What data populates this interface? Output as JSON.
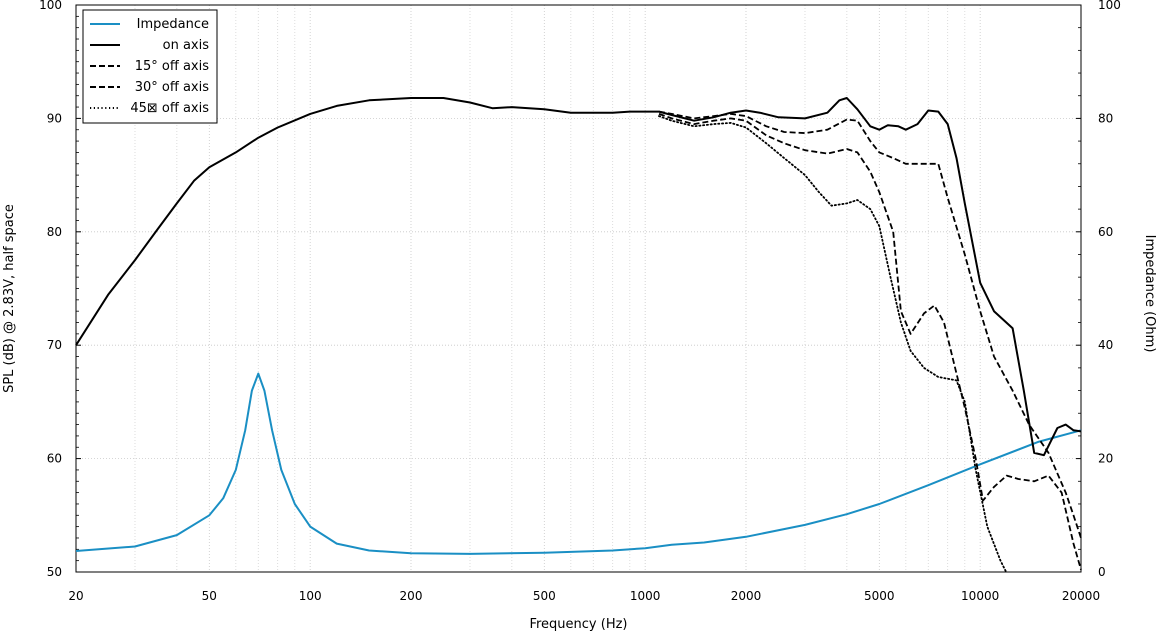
{
  "chart_data": {
    "type": "line",
    "xlabel": "Frequency (Hz)",
    "ylabel": "SPL (dB) @ 2.83V, half space",
    "y2label": "Impedance (Ohm)",
    "x_scale": "log",
    "xlim": [
      20,
      20000
    ],
    "ylim": [
      50,
      100
    ],
    "y2lim": [
      0,
      100
    ],
    "x_ticks": [
      20,
      50,
      100,
      200,
      500,
      1000,
      2000,
      5000,
      10000,
      20000
    ],
    "y_ticks": [
      50,
      60,
      70,
      80,
      90,
      100
    ],
    "y2_ticks": [
      0,
      20,
      40,
      60,
      80,
      100
    ],
    "grid": true,
    "legend_position": "top-left",
    "series": [
      {
        "name": "Impedance",
        "axis": "right",
        "color": "#1a8fc4",
        "style": "solid",
        "points": [
          [
            20,
            3.7
          ],
          [
            30,
            4.5
          ],
          [
            40,
            6.5
          ],
          [
            50,
            10
          ],
          [
            55,
            13
          ],
          [
            60,
            18
          ],
          [
            64,
            25
          ],
          [
            67,
            32
          ],
          [
            70,
            35
          ],
          [
            73,
            32
          ],
          [
            77,
            25
          ],
          [
            82,
            18
          ],
          [
            90,
            12
          ],
          [
            100,
            8
          ],
          [
            120,
            5
          ],
          [
            150,
            3.8
          ],
          [
            200,
            3.3
          ],
          [
            300,
            3.2
          ],
          [
            500,
            3.4
          ],
          [
            800,
            3.8
          ],
          [
            1000,
            4.2
          ],
          [
            1200,
            4.8
          ],
          [
            1500,
            5.2
          ],
          [
            2000,
            6.2
          ],
          [
            3000,
            8.3
          ],
          [
            4000,
            10.2
          ],
          [
            5000,
            12
          ],
          [
            7000,
            15.3
          ],
          [
            10000,
            19
          ],
          [
            15000,
            23
          ],
          [
            20000,
            25
          ]
        ]
      },
      {
        "name": "on axis",
        "axis": "left",
        "color": "#000000",
        "style": "solid",
        "points": [
          [
            20,
            70
          ],
          [
            25,
            74.5
          ],
          [
            30,
            77.5
          ],
          [
            35,
            80.2
          ],
          [
            40,
            82.5
          ],
          [
            45,
            84.5
          ],
          [
            50,
            85.7
          ],
          [
            60,
            87
          ],
          [
            70,
            88.3
          ],
          [
            80,
            89.2
          ],
          [
            100,
            90.4
          ],
          [
            120,
            91.1
          ],
          [
            150,
            91.6
          ],
          [
            200,
            91.8
          ],
          [
            250,
            91.8
          ],
          [
            300,
            91.4
          ],
          [
            350,
            90.9
          ],
          [
            400,
            91.0
          ],
          [
            500,
            90.8
          ],
          [
            600,
            90.5
          ],
          [
            700,
            90.5
          ],
          [
            800,
            90.5
          ],
          [
            900,
            90.6
          ],
          [
            1000,
            90.6
          ],
          [
            1100,
            90.6
          ],
          [
            1200,
            90.3
          ],
          [
            1400,
            89.8
          ],
          [
            1600,
            90.1
          ],
          [
            1800,
            90.5
          ],
          [
            2000,
            90.7
          ],
          [
            2200,
            90.5
          ],
          [
            2500,
            90.1
          ],
          [
            3000,
            90.0
          ],
          [
            3500,
            90.5
          ],
          [
            3800,
            91.6
          ],
          [
            4000,
            91.8
          ],
          [
            4300,
            90.8
          ],
          [
            4700,
            89.3
          ],
          [
            5000,
            89.0
          ],
          [
            5300,
            89.4
          ],
          [
            5700,
            89.3
          ],
          [
            6000,
            89.0
          ],
          [
            6500,
            89.5
          ],
          [
            7000,
            90.7
          ],
          [
            7500,
            90.6
          ],
          [
            8000,
            89.5
          ],
          [
            8500,
            86.5
          ],
          [
            9000,
            82.5
          ],
          [
            10000,
            75.5
          ],
          [
            11000,
            73.0
          ],
          [
            12500,
            71.5
          ],
          [
            13500,
            66.0
          ],
          [
            14500,
            60.5
          ],
          [
            15500,
            60.3
          ],
          [
            17000,
            62.7
          ],
          [
            18000,
            63.0
          ],
          [
            19000,
            62.5
          ],
          [
            20000,
            62.4
          ]
        ]
      },
      {
        "name": "15° off axis",
        "axis": "left",
        "color": "#000000",
        "style": "dashed",
        "points": [
          [
            1100,
            90.6
          ],
          [
            1200,
            90.4
          ],
          [
            1400,
            90.0
          ],
          [
            1600,
            90.2
          ],
          [
            1800,
            90.4
          ],
          [
            2000,
            90.2
          ],
          [
            2300,
            89.3
          ],
          [
            2600,
            88.8
          ],
          [
            3000,
            88.7
          ],
          [
            3500,
            89.0
          ],
          [
            4000,
            89.9
          ],
          [
            4300,
            89.8
          ],
          [
            4700,
            88.0
          ],
          [
            5000,
            87.0
          ],
          [
            5500,
            86.5
          ],
          [
            6000,
            86.0
          ],
          [
            7000,
            86.0
          ],
          [
            7500,
            86.0
          ],
          [
            8000,
            83.0
          ],
          [
            9000,
            78.0
          ],
          [
            10000,
            73.0
          ],
          [
            11000,
            69.0
          ],
          [
            12500,
            66.0
          ],
          [
            14000,
            63.0
          ],
          [
            16000,
            60.5
          ],
          [
            18000,
            57.0
          ],
          [
            19000,
            55.0
          ],
          [
            20000,
            53.0
          ]
        ]
      },
      {
        "name": "30° off axis",
        "axis": "left",
        "color": "#000000",
        "style": "dashed",
        "points": [
          [
            1100,
            90.4
          ],
          [
            1200,
            90.0
          ],
          [
            1400,
            89.5
          ],
          [
            1600,
            89.8
          ],
          [
            1800,
            90.0
          ],
          [
            2000,
            89.8
          ],
          [
            2300,
            88.5
          ],
          [
            2600,
            87.8
          ],
          [
            3000,
            87.2
          ],
          [
            3500,
            86.9
          ],
          [
            4000,
            87.3
          ],
          [
            4300,
            87.0
          ],
          [
            4700,
            85.3
          ],
          [
            5000,
            83.5
          ],
          [
            5500,
            80.0
          ],
          [
            5800,
            73.0
          ],
          [
            6200,
            71.0
          ],
          [
            6800,
            72.8
          ],
          [
            7300,
            73.5
          ],
          [
            7800,
            72.0
          ],
          [
            8500,
            67.5
          ],
          [
            9000,
            64.5
          ],
          [
            9700,
            60.0
          ],
          [
            10200,
            56.3
          ],
          [
            11000,
            57.5
          ],
          [
            12000,
            58.5
          ],
          [
            13000,
            58.2
          ],
          [
            14500,
            58.0
          ],
          [
            16000,
            58.5
          ],
          [
            17500,
            57.0
          ],
          [
            19000,
            52.5
          ],
          [
            20000,
            50.2
          ]
        ]
      },
      {
        "name": "45⊠ off axis",
        "axis": "left",
        "color": "#000000",
        "style": "dotted",
        "points": [
          [
            1100,
            90.2
          ],
          [
            1200,
            89.8
          ],
          [
            1400,
            89.3
          ],
          [
            1600,
            89.5
          ],
          [
            1800,
            89.6
          ],
          [
            2000,
            89.2
          ],
          [
            2300,
            87.8
          ],
          [
            2600,
            86.5
          ],
          [
            3000,
            85.0
          ],
          [
            3300,
            83.5
          ],
          [
            3600,
            82.3
          ],
          [
            4000,
            82.5
          ],
          [
            4300,
            82.8
          ],
          [
            4700,
            82.0
          ],
          [
            5000,
            80.5
          ],
          [
            5400,
            76.0
          ],
          [
            5800,
            72.0
          ],
          [
            6200,
            69.5
          ],
          [
            6800,
            68.0
          ],
          [
            7500,
            67.2
          ],
          [
            8500,
            66.9
          ],
          [
            9000,
            65.0
          ],
          [
            9700,
            59.0
          ],
          [
            10500,
            54.0
          ],
          [
            11500,
            51.0
          ],
          [
            12000,
            49.9
          ]
        ]
      }
    ]
  }
}
